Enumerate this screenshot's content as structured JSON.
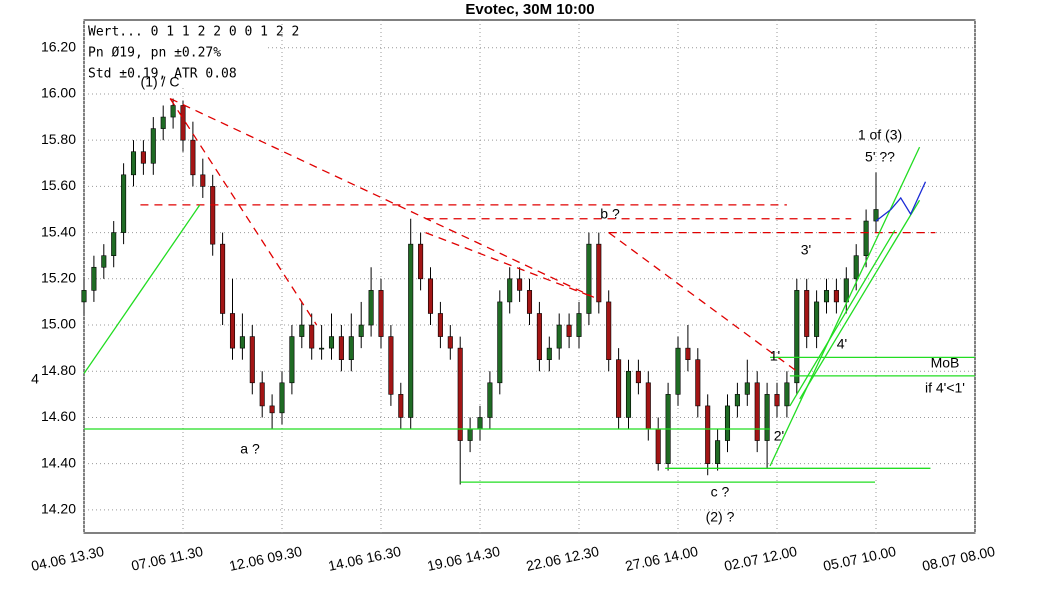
{
  "chart_data": {
    "type": "candlestick",
    "title": "Evotec, 30M 10:00",
    "info": [
      "Wert... 0  1  1  2  2  0  0  1  2  2",
      "Pn  Ø19, pn ±0.27%",
      "Std ±0.19, ATR 0.08"
    ],
    "x": [
      0,
      1,
      2,
      3,
      4,
      5,
      6,
      7,
      8,
      9,
      10,
      11,
      12,
      13,
      14,
      15,
      16,
      17,
      18,
      19,
      20,
      21,
      22,
      23,
      24,
      25,
      26,
      27,
      28,
      29,
      30,
      31,
      32,
      33,
      34,
      35,
      36,
      37,
      38,
      39,
      40,
      41,
      42,
      43,
      44,
      45,
      46,
      47,
      48,
      49,
      50,
      51,
      52,
      53,
      54,
      55,
      56,
      57,
      58,
      59,
      60,
      61,
      62,
      63,
      64,
      65,
      66,
      67,
      68,
      69,
      70,
      71,
      72,
      73,
      74,
      75,
      76,
      77,
      78,
      79,
      80
    ],
    "open": [
      15.1,
      15.15,
      15.25,
      15.3,
      15.4,
      15.65,
      15.75,
      15.7,
      15.85,
      15.9,
      15.95,
      15.8,
      15.65,
      15.6,
      15.35,
      15.05,
      14.9,
      14.95,
      14.75,
      14.65,
      14.62,
      14.75,
      14.95,
      15.0,
      14.9,
      14.9,
      14.95,
      14.85,
      14.95,
      15.0,
      15.15,
      14.95,
      14.7,
      14.6,
      15.35,
      15.2,
      15.05,
      14.95,
      14.9,
      14.5,
      14.55,
      14.6,
      14.75,
      15.1,
      15.2,
      15.15,
      15.05,
      14.85,
      14.9,
      15.0,
      14.95,
      15.05,
      15.35,
      15.1,
      14.85,
      14.6,
      14.8,
      14.75,
      14.55,
      14.4,
      14.7,
      14.9,
      14.85,
      14.65,
      14.4,
      14.5,
      14.65,
      14.7,
      14.75,
      14.5,
      14.7,
      14.65,
      14.75,
      15.15,
      14.95,
      15.1,
      15.15,
      15.1,
      15.2,
      15.3,
      15.45
    ],
    "high": [
      15.2,
      15.3,
      15.35,
      15.45,
      15.7,
      15.8,
      15.8,
      15.9,
      15.95,
      15.98,
      15.97,
      15.88,
      15.72,
      15.65,
      15.4,
      15.2,
      15.05,
      15.0,
      14.8,
      14.7,
      14.8,
      15.0,
      15.1,
      15.05,
      15.0,
      15.05,
      15.0,
      15.05,
      15.1,
      15.25,
      15.2,
      15.0,
      14.75,
      15.46,
      15.4,
      15.25,
      15.1,
      15.0,
      14.95,
      14.6,
      14.65,
      14.8,
      15.15,
      15.25,
      15.25,
      15.2,
      15.1,
      14.95,
      15.05,
      15.05,
      15.1,
      15.4,
      15.4,
      15.15,
      14.9,
      14.85,
      14.85,
      14.8,
      14.6,
      14.75,
      14.95,
      15.0,
      14.9,
      14.7,
      14.55,
      14.7,
      14.75,
      14.85,
      14.8,
      14.75,
      14.75,
      14.8,
      15.2,
      15.2,
      15.15,
      15.2,
      15.2,
      15.25,
      15.35,
      15.5,
      15.66
    ],
    "low": [
      15.05,
      15.1,
      15.2,
      15.25,
      15.35,
      15.6,
      15.65,
      15.65,
      15.8,
      15.85,
      15.75,
      15.6,
      15.55,
      15.3,
      15.0,
      14.85,
      14.85,
      14.7,
      14.6,
      14.55,
      14.57,
      14.7,
      14.9,
      14.85,
      14.85,
      14.85,
      14.8,
      14.8,
      14.9,
      14.95,
      14.9,
      14.65,
      14.55,
      14.55,
      15.15,
      15.0,
      14.9,
      14.85,
      14.31,
      14.45,
      14.5,
      14.55,
      14.7,
      15.05,
      15.1,
      15.0,
      14.8,
      14.8,
      14.85,
      14.9,
      14.9,
      15.0,
      15.05,
      14.8,
      14.55,
      14.55,
      14.7,
      14.5,
      14.37,
      14.37,
      14.65,
      14.8,
      14.6,
      14.35,
      14.37,
      14.45,
      14.6,
      14.65,
      14.45,
      14.38,
      14.6,
      14.6,
      14.7,
      14.9,
      14.9,
      15.05,
      15.05,
      15.05,
      15.15,
      15.25,
      15.4
    ],
    "close": [
      15.15,
      15.25,
      15.3,
      15.4,
      15.65,
      15.75,
      15.7,
      15.85,
      15.9,
      15.95,
      15.8,
      15.65,
      15.6,
      15.35,
      15.05,
      14.9,
      14.95,
      14.75,
      14.65,
      14.62,
      14.75,
      14.95,
      15.0,
      14.9,
      14.9,
      14.95,
      14.85,
      14.95,
      15.0,
      15.15,
      14.95,
      14.7,
      14.6,
      15.35,
      15.2,
      15.05,
      14.95,
      14.9,
      14.5,
      14.55,
      14.6,
      14.75,
      15.1,
      15.2,
      15.15,
      15.05,
      14.85,
      14.9,
      15.0,
      14.95,
      15.05,
      15.35,
      15.1,
      14.85,
      14.6,
      14.8,
      14.75,
      14.55,
      14.4,
      14.7,
      14.9,
      14.85,
      14.65,
      14.4,
      14.5,
      14.65,
      14.7,
      14.75,
      14.5,
      14.7,
      14.65,
      14.75,
      15.15,
      14.95,
      15.1,
      15.15,
      15.1,
      15.2,
      15.3,
      15.45,
      15.5
    ],
    "up_color": "#1f6b24",
    "down_color": "#a31515",
    "xlim": [
      0,
      90
    ],
    "ylim": [
      14.1,
      16.32
    ],
    "xticks": [
      {
        "value": 0,
        "label": "04.06 13.30"
      },
      {
        "value": 10,
        "label": "07.06 11.30"
      },
      {
        "value": 20,
        "label": "12.06 09.30"
      },
      {
        "value": 30,
        "label": "14.06 16.30"
      },
      {
        "value": 40,
        "label": "19.06 14.30"
      },
      {
        "value": 50,
        "label": "22.06 12.30"
      },
      {
        "value": 60,
        "label": "27.06 14.00"
      },
      {
        "value": 70,
        "label": "02.07 12.00"
      },
      {
        "value": 80,
        "label": "05.07 10.00"
      },
      {
        "value": 90,
        "label": "08.07 08.00"
      }
    ],
    "yticks": [
      {
        "value": 14.2,
        "label": "14.20"
      },
      {
        "value": 14.4,
        "label": "14.40"
      },
      {
        "value": 14.6,
        "label": "14.60"
      },
      {
        "value": 14.8,
        "label": "14.80"
      },
      {
        "value": 15.0,
        "label": "15.00"
      },
      {
        "value": 15.2,
        "label": "15.20"
      },
      {
        "value": 15.4,
        "label": "15.40"
      },
      {
        "value": 15.6,
        "label": "15.60"
      },
      {
        "value": 15.8,
        "label": "15.80"
      },
      {
        "value": 16.0,
        "label": "16.00"
      },
      {
        "value": 16.2,
        "label": "16.20"
      }
    ],
    "grid": true,
    "lines": [
      {
        "color": "#e00000",
        "dashed": true,
        "points": [
          [
            8.7,
            15.98
          ],
          [
            23.5,
            15.0
          ]
        ]
      },
      {
        "color": "#e00000",
        "dashed": true,
        "points": [
          [
            8.7,
            15.98
          ],
          [
            51.5,
            15.12
          ]
        ]
      },
      {
        "color": "#e00000",
        "dashed": true,
        "points": [
          [
            5.7,
            15.52
          ],
          [
            71,
            15.52
          ]
        ]
      },
      {
        "color": "#e00000",
        "dashed": true,
        "points": [
          [
            34.5,
            15.46
          ],
          [
            77.5,
            15.46
          ]
        ]
      },
      {
        "color": "#e00000",
        "dashed": true,
        "points": [
          [
            34.5,
            15.4
          ],
          [
            51.5,
            15.12
          ]
        ]
      },
      {
        "color": "#e00000",
        "dashed": true,
        "points": [
          [
            53,
            15.4
          ],
          [
            86,
            15.4
          ]
        ]
      },
      {
        "color": "#e00000",
        "dashed": true,
        "points": [
          [
            53,
            15.4
          ],
          [
            72,
            14.8
          ]
        ]
      },
      {
        "color": "#22dd22",
        "dashed": false,
        "points": [
          [
            0,
            14.79
          ],
          [
            11.7,
            15.52
          ]
        ]
      },
      {
        "color": "#22dd22",
        "dashed": false,
        "points": [
          [
            0,
            14.55
          ],
          [
            69.3,
            14.55
          ]
        ]
      },
      {
        "color": "#22dd22",
        "dashed": false,
        "points": [
          [
            38,
            14.32
          ],
          [
            79.9,
            14.32
          ]
        ]
      },
      {
        "color": "#22dd22",
        "dashed": false,
        "points": [
          [
            58.7,
            14.38
          ],
          [
            85.5,
            14.38
          ]
        ]
      },
      {
        "color": "#22dd22",
        "dashed": false,
        "points": [
          [
            69.3,
            14.86
          ],
          [
            90,
            14.86
          ]
        ]
      },
      {
        "color": "#22dd22",
        "dashed": false,
        "points": [
          [
            71.3,
            14.78
          ],
          [
            90,
            14.78
          ]
        ]
      },
      {
        "color": "#22dd22",
        "dashed": false,
        "points": [
          [
            69.3,
            14.39
          ],
          [
            84.4,
            15.77
          ]
        ]
      },
      {
        "color": "#22dd22",
        "dashed": false,
        "points": [
          [
            71.3,
            14.65
          ],
          [
            81.9,
            15.41
          ]
        ]
      },
      {
        "color": "#22dd22",
        "dashed": false,
        "points": [
          [
            72.3,
            14.68
          ],
          [
            84.4,
            15.54
          ]
        ]
      },
      {
        "color": "#1a2bd6",
        "dashed": false,
        "points": [
          [
            80,
            15.45
          ],
          [
            81.5,
            15.5
          ],
          [
            82.5,
            15.55
          ],
          [
            83.5,
            15.48
          ],
          [
            85,
            15.62
          ]
        ]
      }
    ],
    "annotations": [
      "(1) / C",
      "a ?",
      "b ?",
      "c ?",
      "(2) ?",
      "3'",
      "4'",
      "1'",
      "2'",
      "1 of (3)",
      "5' ??",
      "MoB",
      "if 4'<1'",
      "4"
    ]
  }
}
